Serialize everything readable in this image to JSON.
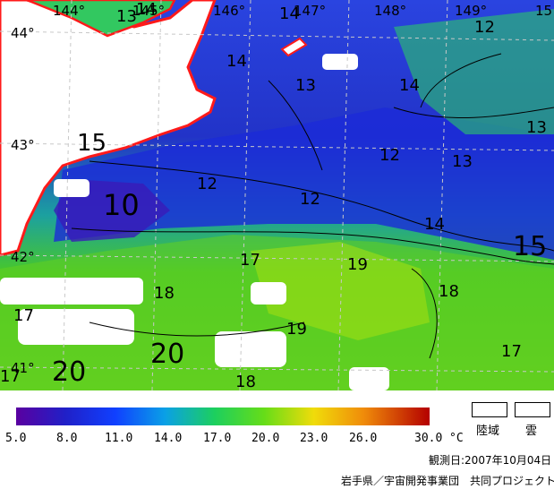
{
  "map": {
    "longitude_labels": [
      "144°",
      "145°",
      "146°",
      "147°",
      "148°",
      "149°",
      "15"
    ],
    "latitude_labels": [
      "44°",
      "43°",
      "42°",
      "41°"
    ],
    "contour_labels": [
      "14",
      "14",
      "13",
      "14",
      "13",
      "12",
      "13",
      "12",
      "13",
      "15",
      "10",
      "12",
      "12",
      "14",
      "15",
      "17",
      "19",
      "18",
      "18",
      "17",
      "19",
      "20",
      "17",
      "18",
      "20",
      "17",
      "14"
    ]
  },
  "colorbar": {
    "ticks": [
      "5.0",
      "8.0",
      "11.0",
      "14.0",
      "17.0",
      "20.0",
      "23.0",
      "26.0",
      "30.0"
    ],
    "unit": "°C",
    "colors": [
      "#5a00a0",
      "#2020c8",
      "#1040ff",
      "#0aa0e6",
      "#1ccf5e",
      "#66dd18",
      "#f0dc0a",
      "#f08c0a",
      "#b40000"
    ]
  },
  "legend": {
    "land": "陸域",
    "cloud": "雲"
  },
  "footer": {
    "observation_date": "観測日:2007年10月04日",
    "credit": "岩手県／宇宙開発事業団　共同プロジェクト"
  }
}
